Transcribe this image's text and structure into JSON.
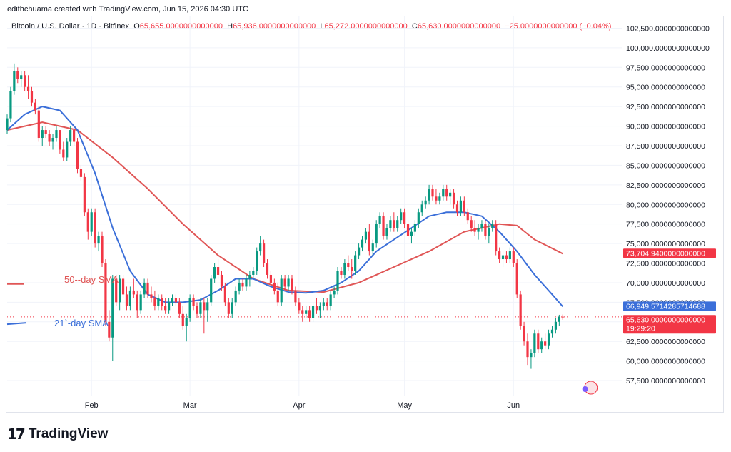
{
  "credit": "edithchuama created with TradingView.com, Jun 15, 2026 04:30 UTC",
  "header": {
    "symbol": "Bitcoin / U.S. Dollar · 1D · Bitfinex",
    "o_label": "O",
    "o_value": "65,655.0000000000000",
    "h_label": "H",
    "h_value": "65,936.0000000000000",
    "l_label": "L",
    "l_value": "65,272.0000000000000",
    "c_label": "C",
    "c_value": "65,630.0000000000000",
    "change": "−25.0000000000000 (−0.04%)"
  },
  "brand": {
    "logo": "17",
    "name": "TradingView"
  },
  "colors": {
    "up": "#089981",
    "down": "#f23645",
    "sma50": "#e05656",
    "sma21": "#3b6fd9",
    "grid": "#f0f3fa"
  },
  "chart_data": {
    "type": "candlestick",
    "y_ticks": [
      {
        "value": 57500,
        "label": "57,500.0000000000000"
      },
      {
        "value": 60000,
        "label": "60,000.0000000000000"
      },
      {
        "value": 62500,
        "label": "62,500.0000000000000"
      },
      {
        "value": 65000,
        "label": "65,000.0000000000000"
      },
      {
        "value": 67500,
        "label": "67,500.0000000000000"
      },
      {
        "value": 70000,
        "label": "70,000.0000000000000"
      },
      {
        "value": 72500,
        "label": "72,500.0000000000000"
      },
      {
        "value": 75000,
        "label": "75,000.0000000000000"
      },
      {
        "value": 77500,
        "label": "77,500.0000000000000"
      },
      {
        "value": 80000,
        "label": "80,000.0000000000000"
      },
      {
        "value": 82500,
        "label": "82,500.0000000000000"
      },
      {
        "value": 85000,
        "label": "85,000.0000000000000"
      },
      {
        "value": 87500,
        "label": "87,500.0000000000000"
      },
      {
        "value": 90000,
        "label": "90,000.0000000000000"
      },
      {
        "value": 92500,
        "label": "92,500.0000000000000"
      },
      {
        "value": 95000,
        "label": "95,000.0000000000000"
      },
      {
        "value": 97500,
        "label": "97,500.0000000000000"
      },
      {
        "value": 100000,
        "label": "100,000.0000000000000"
      },
      {
        "value": 102500,
        "label": "102,500.0000000000000"
      }
    ],
    "y_range": [
      55500,
      104000
    ],
    "x_ticks": [
      {
        "day": 24,
        "label": "Feb"
      },
      {
        "day": 52,
        "label": "Mar"
      },
      {
        "day": 83,
        "label": "Apr"
      },
      {
        "day": 113,
        "label": "May"
      },
      {
        "day": 144,
        "label": "Jun"
      }
    ],
    "x_range": [
      0,
      175
    ],
    "candles": [
      [
        0,
        89500,
        91500,
        89000,
        91000
      ],
      [
        1,
        91000,
        95000,
        90500,
        94500
      ],
      [
        2,
        94500,
        98000,
        94000,
        97000
      ],
      [
        3,
        97000,
        97500,
        95500,
        96000
      ],
      [
        4,
        96000,
        97000,
        95000,
        96500
      ],
      [
        5,
        96500,
        97000,
        94500,
        95000
      ],
      [
        6,
        95000,
        96500,
        93500,
        94500
      ],
      [
        7,
        94500,
        95000,
        92500,
        93000
      ],
      [
        8,
        93000,
        93500,
        91500,
        92000
      ],
      [
        9,
        92000,
        92500,
        88000,
        88500
      ],
      [
        10,
        88500,
        90000,
        87500,
        89500
      ],
      [
        11,
        89500,
        90000,
        88500,
        89000
      ],
      [
        12,
        89000,
        89500,
        87500,
        88000
      ],
      [
        13,
        88000,
        89000,
        87000,
        88500
      ],
      [
        14,
        88500,
        90000,
        88000,
        89500
      ],
      [
        15,
        89500,
        89500,
        86500,
        87000
      ],
      [
        16,
        87000,
        88000,
        85500,
        86000
      ],
      [
        17,
        86000,
        88500,
        85500,
        88000
      ],
      [
        18,
        88000,
        90000,
        87500,
        89500
      ],
      [
        19,
        89500,
        90000,
        87500,
        88000
      ],
      [
        20,
        88000,
        88500,
        84000,
        84500
      ],
      [
        21,
        84500,
        85000,
        83000,
        83500
      ],
      [
        22,
        83500,
        84000,
        78500,
        79000
      ],
      [
        23,
        79000,
        79500,
        75500,
        76500
      ],
      [
        24,
        76500,
        79500,
        76000,
        79000
      ],
      [
        25,
        79000,
        79500,
        74500,
        75000
      ],
      [
        26,
        75000,
        76500,
        74000,
        76000
      ],
      [
        27,
        76000,
        76500,
        72000,
        72500
      ],
      [
        28,
        72500,
        73000,
        64500,
        65000
      ],
      [
        29,
        65000,
        66500,
        62500,
        63000
      ],
      [
        30,
        63000,
        71000,
        60000,
        70500
      ],
      [
        31,
        70500,
        71000,
        67000,
        67500
      ],
      [
        32,
        67500,
        71000,
        66500,
        70500
      ],
      [
        33,
        70500,
        71000,
        68000,
        68500
      ],
      [
        34,
        68500,
        69500,
        66500,
        67000
      ],
      [
        35,
        67000,
        69500,
        66500,
        69000
      ],
      [
        36,
        69000,
        70500,
        68000,
        68500
      ],
      [
        37,
        68500,
        69000,
        65500,
        66500
      ],
      [
        38,
        66500,
        69000,
        66000,
        68500
      ],
      [
        39,
        68500,
        70500,
        68000,
        70000
      ],
      [
        40,
        70000,
        70500,
        68000,
        68500
      ],
      [
        41,
        68500,
        69500,
        67500,
        68000
      ],
      [
        42,
        68000,
        69000,
        66500,
        67000
      ],
      [
        43,
        67000,
        68500,
        66500,
        68000
      ],
      [
        44,
        68000,
        68500,
        66500,
        67000
      ],
      [
        45,
        67000,
        68000,
        66000,
        66500
      ],
      [
        46,
        66500,
        68000,
        66000,
        67500
      ],
      [
        47,
        67500,
        68500,
        67000,
        68000
      ],
      [
        48,
        68000,
        68500,
        67000,
        67500
      ],
      [
        49,
        67500,
        68000,
        65500,
        66000
      ],
      [
        50,
        66000,
        67000,
        64000,
        64500
      ],
      [
        51,
        64500,
        66000,
        62500,
        65500
      ],
      [
        52,
        65500,
        68500,
        65000,
        68000
      ],
      [
        53,
        68000,
        68500,
        66500,
        67000
      ],
      [
        54,
        67000,
        67500,
        65500,
        66000
      ],
      [
        55,
        66000,
        68000,
        65500,
        67500
      ],
      [
        56,
        67500,
        68000,
        63500,
        66500
      ],
      [
        57,
        66500,
        68000,
        65000,
        67500
      ],
      [
        58,
        67500,
        71000,
        67000,
        70500
      ],
      [
        59,
        70500,
        72500,
        70000,
        72000
      ],
      [
        60,
        72000,
        73000,
        70500,
        71000
      ],
      [
        61,
        71000,
        71500,
        69000,
        69500
      ],
      [
        62,
        69500,
        70000,
        67000,
        67500
      ],
      [
        63,
        67500,
        68000,
        65500,
        66000
      ],
      [
        64,
        66000,
        68000,
        65500,
        67500
      ],
      [
        65,
        67500,
        69500,
        67000,
        69000
      ],
      [
        66,
        69000,
        70500,
        68500,
        70000
      ],
      [
        67,
        70000,
        70500,
        69000,
        69500
      ],
      [
        68,
        69500,
        71000,
        69000,
        70500
      ],
      [
        69,
        70500,
        71500,
        69500,
        71000
      ],
      [
        70,
        71000,
        72000,
        70500,
        71500
      ],
      [
        71,
        71500,
        74500,
        71000,
        74000
      ],
      [
        72,
        74000,
        76000,
        73500,
        75000
      ],
      [
        73,
        75000,
        75500,
        72000,
        72500
      ],
      [
        74,
        72500,
        73000,
        70500,
        71000
      ],
      [
        75,
        71000,
        71500,
        69500,
        70000
      ],
      [
        76,
        70000,
        70500,
        68500,
        69000
      ],
      [
        77,
        69000,
        70000,
        67000,
        67500
      ],
      [
        78,
        67500,
        71000,
        67000,
        70500
      ],
      [
        79,
        70500,
        71000,
        69000,
        69500
      ],
      [
        80,
        69500,
        71000,
        69000,
        70500
      ],
      [
        81,
        70500,
        71000,
        68500,
        69000
      ],
      [
        82,
        69000,
        69500,
        67000,
        67500
      ],
      [
        83,
        67500,
        68000,
        66000,
        66500
      ],
      [
        84,
        66500,
        67000,
        65000,
        66000
      ],
      [
        85,
        66000,
        67000,
        65500,
        66500
      ],
      [
        86,
        66500,
        67000,
        65000,
        65500
      ],
      [
        87,
        65500,
        67500,
        65000,
        67000
      ],
      [
        88,
        67000,
        68000,
        66000,
        66500
      ],
      [
        89,
        66500,
        67500,
        65500,
        67000
      ],
      [
        90,
        67000,
        68000,
        66500,
        67500
      ],
      [
        91,
        67500,
        68000,
        66500,
        67000
      ],
      [
        92,
        67000,
        69000,
        66500,
        68500
      ],
      [
        93,
        68500,
        69500,
        68000,
        69000
      ],
      [
        94,
        69000,
        72000,
        68500,
        71500
      ],
      [
        95,
        71500,
        72000,
        70500,
        71000
      ],
      [
        96,
        71000,
        73000,
        70500,
        72500
      ],
      [
        97,
        72500,
        73500,
        71500,
        72000
      ],
      [
        98,
        72000,
        73000,
        70500,
        71500
      ],
      [
        99,
        71500,
        74000,
        71000,
        73500
      ],
      [
        100,
        73500,
        75000,
        73000,
        74500
      ],
      [
        101,
        74500,
        76000,
        74000,
        75500
      ],
      [
        102,
        75500,
        77000,
        75000,
        76500
      ],
      [
        103,
        76500,
        77500,
        73500,
        74000
      ],
      [
        104,
        74000,
        75500,
        73500,
        75000
      ],
      [
        105,
        75000,
        78000,
        74500,
        77500
      ],
      [
        106,
        77500,
        79000,
        77000,
        78500
      ],
      [
        107,
        78500,
        79000,
        75500,
        76000
      ],
      [
        108,
        76000,
        77500,
        75500,
        77000
      ],
      [
        109,
        77000,
        78500,
        76500,
        78000
      ],
      [
        110,
        78000,
        79000,
        76500,
        77000
      ],
      [
        111,
        77000,
        78500,
        76500,
        78000
      ],
      [
        112,
        78000,
        79500,
        77500,
        79000
      ],
      [
        113,
        79000,
        79500,
        77000,
        77500
      ],
      [
        114,
        77500,
        78000,
        75500,
        76000
      ],
      [
        115,
        76000,
        77000,
        75000,
        76500
      ],
      [
        116,
        76500,
        78000,
        76000,
        77500
      ],
      [
        117,
        77500,
        79500,
        77000,
        79000
      ],
      [
        118,
        79000,
        80500,
        78500,
        80000
      ],
      [
        119,
        80000,
        81000,
        79500,
        80500
      ],
      [
        120,
        80500,
        82500,
        80000,
        82000
      ],
      [
        121,
        82000,
        82500,
        80500,
        81000
      ],
      [
        122,
        81000,
        82000,
        80000,
        80500
      ],
      [
        123,
        80500,
        81500,
        80000,
        81000
      ],
      [
        124,
        81000,
        82500,
        80500,
        82000
      ],
      [
        125,
        82000,
        82500,
        80500,
        81000
      ],
      [
        126,
        81000,
        82000,
        80000,
        81500
      ],
      [
        127,
        81500,
        82000,
        79500,
        80000
      ],
      [
        128,
        80000,
        80500,
        78500,
        79000
      ],
      [
        129,
        79000,
        81000,
        78500,
        80500
      ],
      [
        130,
        80500,
        81000,
        78500,
        79000
      ],
      [
        131,
        79000,
        79500,
        77500,
        78000
      ],
      [
        132,
        78000,
        78500,
        76500,
        77000
      ],
      [
        133,
        77000,
        78000,
        76000,
        76500
      ],
      [
        134,
        76500,
        77500,
        75500,
        77000
      ],
      [
        135,
        77000,
        78000,
        76500,
        77500
      ],
      [
        136,
        77500,
        78000,
        75500,
        76000
      ],
      [
        137,
        76000,
        77500,
        75000,
        77000
      ],
      [
        138,
        77000,
        78000,
        76500,
        77500
      ],
      [
        139,
        77500,
        78000,
        73500,
        74000
      ],
      [
        140,
        74000,
        74500,
        72500,
        73000
      ],
      [
        141,
        73000,
        74000,
        72000,
        73500
      ],
      [
        142,
        73500,
        74000,
        72500,
        73000
      ],
      [
        143,
        73000,
        74500,
        72500,
        74000
      ],
      [
        144,
        74000,
        74500,
        72000,
        72500
      ],
      [
        145,
        72500,
        73000,
        68000,
        68500
      ],
      [
        146,
        68500,
        69000,
        64000,
        64500
      ],
      [
        147,
        64500,
        65000,
        62000,
        62500
      ],
      [
        148,
        62500,
        63500,
        59500,
        60500
      ],
      [
        149,
        60500,
        61500,
        59000,
        61000
      ],
      [
        150,
        61000,
        64000,
        60500,
        63500
      ],
      [
        151,
        63500,
        64000,
        61000,
        61500
      ],
      [
        152,
        61500,
        63000,
        61000,
        62500
      ],
      [
        153,
        62500,
        63500,
        61500,
        62000
      ],
      [
        154,
        62000,
        64000,
        61500,
        63500
      ],
      [
        155,
        63500,
        64500,
        63000,
        64000
      ],
      [
        156,
        64000,
        65500,
        63500,
        65000
      ],
      [
        157,
        65000,
        65900,
        64500,
        65655
      ],
      [
        158,
        65655,
        65936,
        65272,
        65630
      ]
    ],
    "sma50": {
      "name": "50-day SMA",
      "points": [
        [
          0,
          89500
        ],
        [
          10,
          90500
        ],
        [
          20,
          89500
        ],
        [
          30,
          86000
        ],
        [
          40,
          82000
        ],
        [
          50,
          77500
        ],
        [
          60,
          73500
        ],
        [
          70,
          70500
        ],
        [
          80,
          69000
        ],
        [
          90,
          68800
        ],
        [
          100,
          70000
        ],
        [
          110,
          72000
        ],
        [
          120,
          74000
        ],
        [
          130,
          76500
        ],
        [
          140,
          77500
        ],
        [
          145,
          77300
        ],
        [
          150,
          75500
        ],
        [
          158,
          73705
        ]
      ],
      "last_label": "73,704.9400000000000"
    },
    "sma21": {
      "name": "21-day SMA",
      "points": [
        [
          0,
          89500
        ],
        [
          5,
          91500
        ],
        [
          10,
          92500
        ],
        [
          15,
          92000
        ],
        [
          20,
          89500
        ],
        [
          25,
          84000
        ],
        [
          30,
          77000
        ],
        [
          35,
          71500
        ],
        [
          40,
          68500
        ],
        [
          45,
          67500
        ],
        [
          50,
          67500
        ],
        [
          55,
          67800
        ],
        [
          60,
          69000
        ],
        [
          65,
          70500
        ],
        [
          70,
          70500
        ],
        [
          75,
          69500
        ],
        [
          80,
          68800
        ],
        [
          85,
          68700
        ],
        [
          90,
          69000
        ],
        [
          95,
          70000
        ],
        [
          100,
          71500
        ],
        [
          105,
          74000
        ],
        [
          110,
          75500
        ],
        [
          115,
          77000
        ],
        [
          120,
          78500
        ],
        [
          125,
          79000
        ],
        [
          130,
          79000
        ],
        [
          135,
          78500
        ],
        [
          140,
          76500
        ],
        [
          145,
          74000
        ],
        [
          150,
          71000
        ],
        [
          155,
          68500
        ],
        [
          158,
          66950
        ]
      ],
      "last_label": "66,949.5714285714688"
    },
    "last_price_label": "65,630.0000000000000",
    "last_price": 65630,
    "countdown": "19:29:20",
    "annotations": [
      {
        "text": "50--day SMA",
        "value": 70200
      },
      {
        "text": "21`-day SMA",
        "value": 64600
      }
    ]
  }
}
